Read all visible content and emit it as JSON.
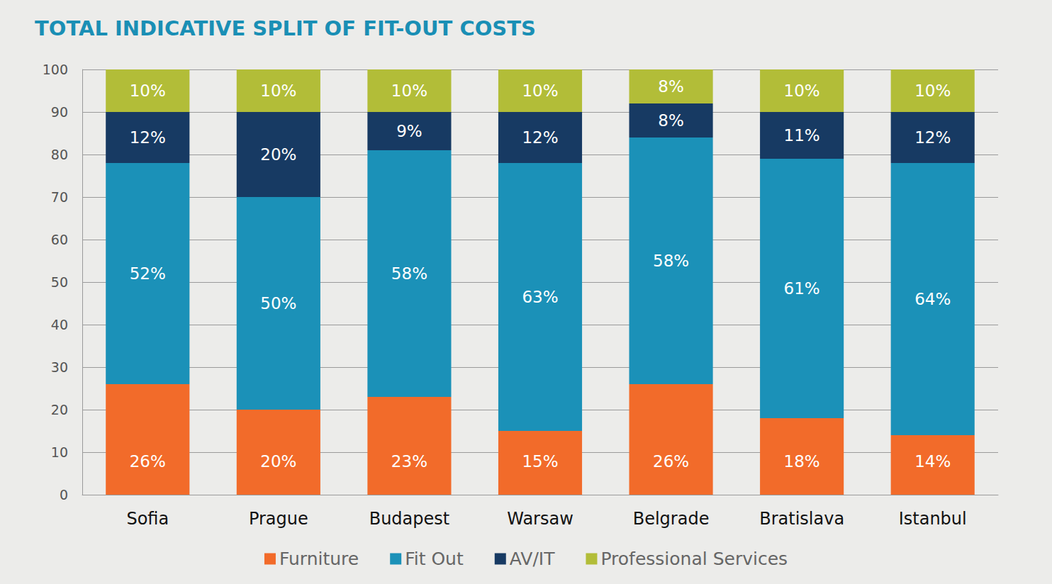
{
  "chart_data": {
    "type": "bar",
    "title": "TOTAL INDICATIVE SPLIT OF FIT-OUT COSTS",
    "categories": [
      "Sofia",
      "Prague",
      "Budapest",
      "Warsaw",
      "Belgrade",
      "Bratislava",
      "Istanbul"
    ],
    "stacked": true,
    "data_labels": true,
    "grid": true,
    "legend": "bottom",
    "ylim": [
      0,
      100
    ],
    "yticks": [
      0,
      10,
      20,
      30,
      40,
      50,
      60,
      70,
      80,
      90,
      100
    ],
    "series": [
      {
        "name": "Furniture",
        "color": "#f26b2a",
        "values": [
          26,
          20,
          23,
          15,
          26,
          18,
          14
        ],
        "value_labels": [
          "26%",
          "20%",
          "23%",
          "15%",
          "26%",
          "18%",
          "14%"
        ]
      },
      {
        "name": "Fit Out",
        "color": "#1b91b8",
        "values": [
          52,
          50,
          58,
          63,
          58,
          61,
          64
        ],
        "value_labels": [
          "52%",
          "50%",
          "58%",
          "63%",
          "58%",
          "61%",
          "64%"
        ]
      },
      {
        "name": "AV/IT",
        "color": "#173a63",
        "values": [
          12,
          20,
          9,
          12,
          8,
          11,
          12
        ],
        "value_labels": [
          "12%",
          "20%",
          "9%",
          "12%",
          "8%",
          "11%",
          "12%"
        ]
      },
      {
        "name": "Professional Services",
        "color": "#b2bd38",
        "values": [
          10,
          10,
          10,
          10,
          8,
          10,
          10
        ],
        "value_labels": [
          "10%",
          "10%",
          "10%",
          "10%",
          "8%",
          "10%",
          "10%"
        ]
      }
    ]
  }
}
